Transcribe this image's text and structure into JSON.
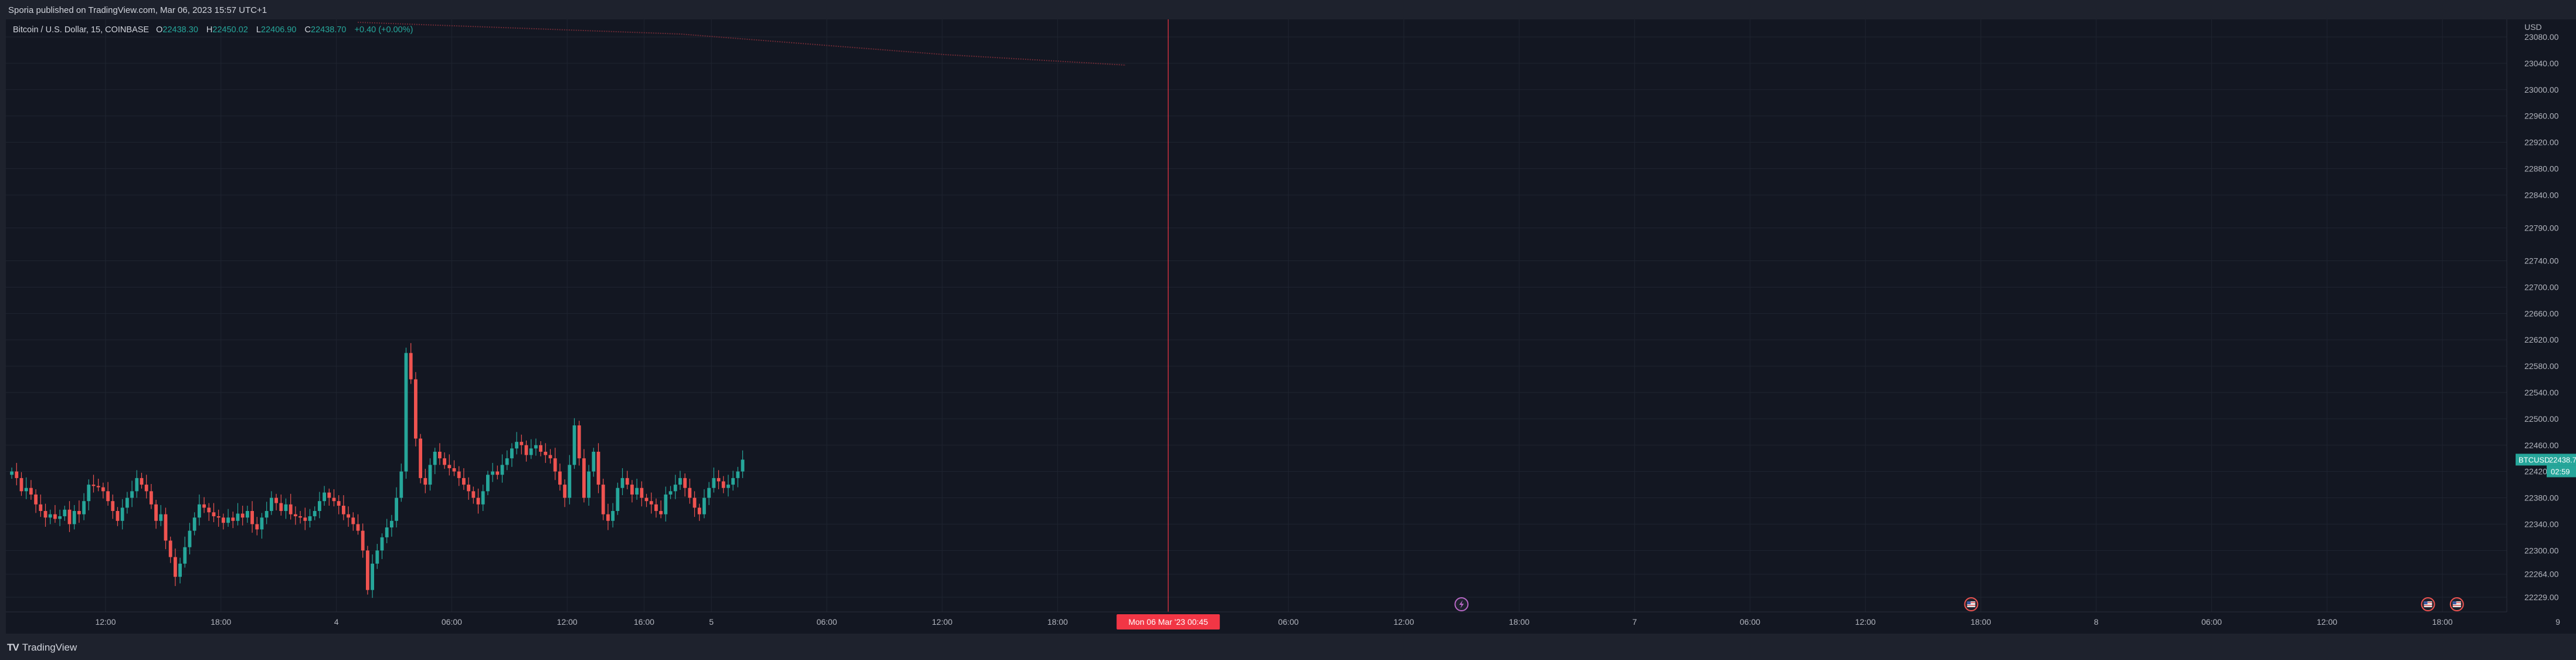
{
  "header": {
    "publisher": "Sporia published on TradingView.com, Mar 06, 2023 15:57 UTC+1"
  },
  "legend": {
    "symbol": "Bitcoin / U.S. Dollar, 15, COINBASE",
    "open_key": "O",
    "open": "22438.30",
    "high_key": "H",
    "high": "22450.02",
    "low_key": "L",
    "low": "22406.90",
    "close_key": "C",
    "close": "22438.70",
    "change": "+0.40 (+0.00%)"
  },
  "axis": {
    "currency": "USD",
    "price_ticks": [
      {
        "v": 23080,
        "label": "23080.00"
      },
      {
        "v": 23040,
        "label": "23040.00"
      },
      {
        "v": 23000,
        "label": "23000.00"
      },
      {
        "v": 22960,
        "label": "22960.00"
      },
      {
        "v": 22920,
        "label": "22920.00"
      },
      {
        "v": 22880,
        "label": "22880.00"
      },
      {
        "v": 22840,
        "label": "22840.00"
      },
      {
        "v": 22790,
        "label": "22790.00"
      },
      {
        "v": 22740,
        "label": "22740.00"
      },
      {
        "v": 22700,
        "label": "22700.00"
      },
      {
        "v": 22660,
        "label": "22660.00"
      },
      {
        "v": 22620,
        "label": "22620.00"
      },
      {
        "v": 22580,
        "label": "22580.00"
      },
      {
        "v": 22540,
        "label": "22540.00"
      },
      {
        "v": 22500,
        "label": "22500.00"
      },
      {
        "v": 22460,
        "label": "22460.00"
      },
      {
        "v": 22420,
        "label": "22420.00"
      },
      {
        "v": 22380,
        "label": "22380.00"
      },
      {
        "v": 22340,
        "label": "22340.00"
      },
      {
        "v": 22300,
        "label": "22300.00"
      },
      {
        "v": 22264,
        "label": "22264.00"
      },
      {
        "v": 22229,
        "label": "22229.00"
      }
    ],
    "time_ticks": [
      {
        "label": "12:00",
        "bar": 20
      },
      {
        "label": "18:00",
        "bar": 44
      },
      {
        "label": "4",
        "bar": 68
      },
      {
        "label": "06:00",
        "bar": 92
      },
      {
        "label": "12:00",
        "bar": 116
      },
      {
        "label": "16:00",
        "bar": 132
      },
      {
        "label": "5",
        "bar": 146
      },
      {
        "label": "06:00",
        "bar": 170
      },
      {
        "label": "12:00",
        "bar": 194
      },
      {
        "label": "18:00",
        "bar": 218
      },
      {
        "label": "06:00",
        "bar": 266
      },
      {
        "label": "12:00",
        "bar": 290
      },
      {
        "label": "18:00",
        "bar": 314
      },
      {
        "label": "7",
        "bar": 338
      },
      {
        "label": "06:00",
        "bar": 362
      },
      {
        "label": "12:00",
        "bar": 386
      },
      {
        "label": "18:00",
        "bar": 410
      },
      {
        "label": "8",
        "bar": 434
      },
      {
        "label": "06:00",
        "bar": 458
      },
      {
        "label": "12:00",
        "bar": 482
      },
      {
        "label": "18:00",
        "bar": 506
      },
      {
        "label": "9",
        "bar": 530
      }
    ]
  },
  "crosshair": {
    "label": "Mon 06 Mar '23   00:45",
    "bar": 241
  },
  "price_tag": {
    "symbol": "BTCUSD",
    "price": "22438.70",
    "countdown": "02:59"
  },
  "events": [
    {
      "icon": "lightning-icon",
      "bar": 302
    },
    {
      "icon": "us-flag-icon",
      "bar": 408
    },
    {
      "icon": "us-flag-icon",
      "bar": 503
    },
    {
      "icon": "us-flag-icon",
      "bar": 509
    }
  ],
  "colors": {
    "up": "#26a69a",
    "down": "#ef5350",
    "crosshair": "#f23645",
    "background": "#131722"
  },
  "chart_data": {
    "type": "candlestick",
    "title": "Bitcoin / U.S. Dollar, 15, COINBASE",
    "ylim": [
      22229,
      23080
    ],
    "note_closes": [
      22420,
      22410,
      22390,
      22395,
      22385,
      22370,
      22360,
      22350,
      22355,
      22348,
      22352,
      22362,
      22340,
      22360,
      22355,
      22375,
      22400,
      22398,
      22396,
      22390,
      22375,
      22360,
      22345,
      22365,
      22380,
      22390,
      22410,
      22400,
      22390,
      22370,
      22345,
      22355,
      22315,
      22290,
      22260,
      22280,
      22305,
      22330,
      22350,
      22370,
      22365,
      22358,
      22352,
      22350,
      22342,
      22350,
      22345,
      22356,
      22350,
      22360,
      22340,
      22332,
      22350,
      22360,
      22380,
      22372,
      22360,
      22370,
      22355,
      22352,
      22350,
      22345,
      22352,
      22360,
      22375,
      22388,
      22380,
      22375,
      22368,
      22355,
      22350,
      22340,
      22330,
      22300,
      22240,
      22280,
      22300,
      22320,
      22335,
      22345,
      22380,
      22420,
      22600,
      22560,
      22470,
      22410,
      22400,
      22430,
      22450,
      22440,
      22430,
      22425,
      22420,
      22410,
      22400,
      22390,
      22380,
      22370,
      22390,
      22415,
      22420,
      22415,
      22430,
      22440,
      22455,
      22465,
      22460,
      22445,
      22455,
      22460,
      22450,
      22445,
      22440,
      22420,
      22400,
      22380,
      22430,
      22490,
      22440,
      22380,
      22420,
      22450,
      22400,
      22355,
      22345,
      22360,
      22395,
      22410,
      22400,
      22385,
      22395,
      22380,
      22375,
      22370,
      22360,
      22355,
      22385,
      22390,
      22400,
      22410,
      22395,
      22380,
      22365,
      22355,
      22380,
      22395,
      22410,
      22405,
      22395,
      22400,
      22410,
      22420,
      22438
    ]
  }
}
